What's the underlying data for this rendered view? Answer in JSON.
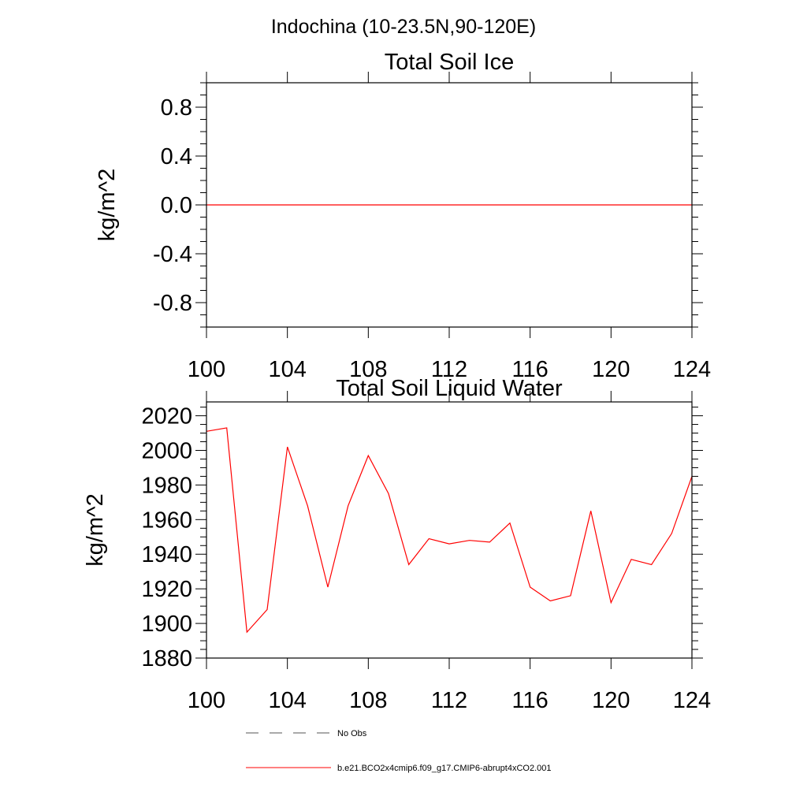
{
  "figure_title": "Indochina (10-23.5N,90-120E)",
  "legend": [
    {
      "label": "No Obs",
      "style": "dashed",
      "color": "#555555"
    },
    {
      "label": "b.e21.BCO2x4cmip6.f09_g17.CMIP6-abrupt4xCO2.001",
      "style": "solid",
      "color": "#ff0000"
    }
  ],
  "chart_data": [
    {
      "type": "line",
      "title": "Total Soil Ice",
      "xlabel": "",
      "ylabel": "kg/m^2",
      "xlim": [
        100,
        124
      ],
      "ylim": [
        -1.0,
        1.0
      ],
      "x_ticks": [
        100,
        104,
        108,
        112,
        116,
        120,
        124
      ],
      "y_ticks": [
        -0.8,
        -0.4,
        0.0,
        0.4,
        0.8
      ],
      "y_tick_labels": [
        "-0.8",
        "-0.4",
        "0.0",
        "0.4",
        "0.8"
      ],
      "series": [
        {
          "name": "b.e21.BCO2x4cmip6.f09_g17.CMIP6-abrupt4xCO2.001",
          "color": "#ff0000",
          "x": [
            100,
            101,
            102,
            103,
            104,
            105,
            106,
            107,
            108,
            109,
            110,
            111,
            112,
            113,
            114,
            115,
            116,
            117,
            118,
            119,
            120,
            121,
            122,
            123,
            124
          ],
          "values": [
            0,
            0,
            0,
            0,
            0,
            0,
            0,
            0,
            0,
            0,
            0,
            0,
            0,
            0,
            0,
            0,
            0,
            0,
            0,
            0,
            0,
            0,
            0,
            0,
            0
          ]
        }
      ]
    },
    {
      "type": "line",
      "title": "Total Soil Liquid Water",
      "xlabel": "",
      "ylabel": "kg/m^2",
      "xlim": [
        100,
        124
      ],
      "ylim": [
        1880,
        2028
      ],
      "x_ticks": [
        100,
        104,
        108,
        112,
        116,
        120,
        124
      ],
      "y_ticks": [
        1880,
        1900,
        1920,
        1940,
        1960,
        1980,
        2000,
        2020
      ],
      "y_tick_labels": [
        "1880",
        "1900",
        "1920",
        "1940",
        "1960",
        "1980",
        "2000",
        "2020"
      ],
      "series": [
        {
          "name": "b.e21.BCO2x4cmip6.f09_g17.CMIP6-abrupt4xCO2.001",
          "color": "#ff0000",
          "x": [
            100,
            101,
            102,
            103,
            104,
            105,
            106,
            107,
            108,
            109,
            110,
            111,
            112,
            113,
            114,
            115,
            116,
            117,
            118,
            119,
            120,
            121,
            122,
            123,
            124
          ],
          "values": [
            2011,
            2013,
            1895,
            1908,
            2002,
            1968,
            1921,
            1968,
            1997,
            1975,
            1934,
            1949,
            1946,
            1948,
            1947,
            1958,
            1921,
            1913,
            1916,
            1965,
            1912,
            1937,
            1934,
            1952,
            1985
          ]
        }
      ]
    }
  ]
}
